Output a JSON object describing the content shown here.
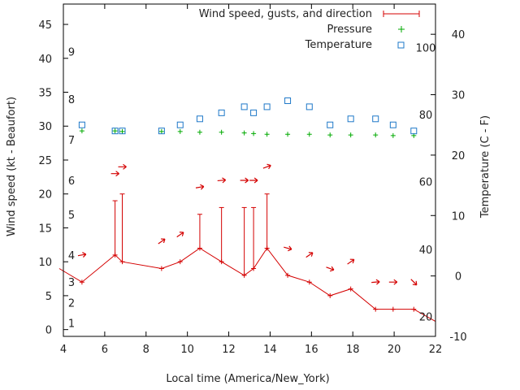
{
  "chart_data": {
    "type": "line",
    "xlabel": "Local time (America/New_York)",
    "ylabel_left": "Wind speed (kt - Beaufort)",
    "ylabel_right": "Temperature (C - F)",
    "xlim": [
      4,
      22
    ],
    "xticks": [
      4,
      6,
      8,
      10,
      12,
      14,
      16,
      18,
      20,
      22
    ],
    "ylim_left": [
      -1,
      48
    ],
    "yticks_left": [
      0,
      5,
      10,
      15,
      20,
      25,
      30,
      35,
      40,
      45
    ],
    "ylim_right_celsius": [
      -10,
      45
    ],
    "yticks_right_celsius": [
      -10,
      0,
      10,
      20,
      30,
      40
    ],
    "fahrenheit_labels": [
      {
        "label": "20",
        "celsius": -6.7
      },
      {
        "label": "40",
        "celsius": 4.4
      },
      {
        "label": "60",
        "celsius": 15.6
      },
      {
        "label": "80",
        "celsius": 26.7
      },
      {
        "label": "100",
        "celsius": 37.8
      }
    ],
    "beaufort_labels": [
      {
        "label": "1",
        "y": 1
      },
      {
        "label": "2",
        "y": 4
      },
      {
        "label": "3",
        "y": 7
      },
      {
        "label": "4",
        "y": 11
      },
      {
        "label": "5",
        "y": 17
      },
      {
        "label": "6",
        "y": 22
      },
      {
        "label": "7",
        "y": 28
      },
      {
        "label": "8",
        "y": 34
      },
      {
        "label": "9",
        "y": 41
      }
    ],
    "legend": {
      "position": "top-right",
      "entries": [
        "Wind speed, gusts, and direction",
        "Pressure",
        "Temperature"
      ]
    },
    "colors": {
      "wind": "#d40000",
      "pressure": "#00aa00",
      "temperature": "#1e78c8",
      "axis": "#000000"
    },
    "wind_speed": {
      "name": "Wind speed, gusts, and direction",
      "x": [
        3.8,
        4.9,
        6.5,
        6.85,
        8.75,
        9.65,
        10.6,
        11.65,
        12.75,
        13.2,
        13.85,
        14.85,
        15.9,
        16.9,
        17.9,
        19.1,
        19.95,
        20.95,
        22
      ],
      "y": [
        9,
        7,
        11,
        10,
        9,
        10,
        12,
        10,
        8,
        9,
        12,
        8,
        7,
        5,
        6,
        3,
        3,
        3,
        1.2
      ],
      "markers": [
        false,
        true,
        true,
        true,
        true,
        true,
        true,
        true,
        true,
        true,
        true,
        true,
        true,
        true,
        true,
        true,
        true,
        true,
        false
      ]
    },
    "gusts": [
      {
        "x": 6.5,
        "base": 11,
        "gust": 19
      },
      {
        "x": 6.85,
        "base": 10,
        "gust": 20
      },
      {
        "x": 10.6,
        "base": 12,
        "gust": 17
      },
      {
        "x": 11.65,
        "base": 10,
        "gust": 18
      },
      {
        "x": 12.75,
        "base": 8,
        "gust": 18
      },
      {
        "x": 13.2,
        "base": 9,
        "gust": 18
      },
      {
        "x": 13.85,
        "base": 12,
        "gust": 20
      }
    ],
    "direction_arrows": [
      {
        "x": 4.9,
        "y": 11.0,
        "angle": -10
      },
      {
        "x": 6.5,
        "y": 23.0,
        "angle": 0
      },
      {
        "x": 6.85,
        "y": 24.0,
        "angle": 0
      },
      {
        "x": 8.75,
        "y": 13.0,
        "angle": -35
      },
      {
        "x": 9.65,
        "y": 14.0,
        "angle": -35
      },
      {
        "x": 10.6,
        "y": 21.0,
        "angle": -10
      },
      {
        "x": 11.65,
        "y": 22.0,
        "angle": -5
      },
      {
        "x": 12.75,
        "y": 22.0,
        "angle": 0
      },
      {
        "x": 13.2,
        "y": 22.0,
        "angle": 0
      },
      {
        "x": 13.85,
        "y": 24.0,
        "angle": -20
      },
      {
        "x": 14.85,
        "y": 12.0,
        "angle": 15
      },
      {
        "x": 15.9,
        "y": 11.0,
        "angle": -35
      },
      {
        "x": 16.9,
        "y": 9.0,
        "angle": 20
      },
      {
        "x": 17.9,
        "y": 10.0,
        "angle": -35
      },
      {
        "x": 19.1,
        "y": 7.0,
        "angle": -5
      },
      {
        "x": 19.95,
        "y": 7.0,
        "angle": 0
      },
      {
        "x": 20.95,
        "y": 7.0,
        "angle": 45
      }
    ],
    "pressure": {
      "name": "Pressure",
      "x": [
        4.9,
        6.5,
        6.85,
        8.75,
        9.65,
        10.6,
        11.65,
        12.75,
        13.2,
        13.85,
        14.85,
        15.9,
        16.9,
        17.9,
        19.1,
        19.95,
        20.95
      ],
      "y": [
        29.3,
        29.3,
        29.2,
        29.2,
        29.2,
        29.1,
        29.1,
        29.0,
        28.9,
        28.8,
        28.8,
        28.8,
        28.7,
        28.7,
        28.7,
        28.6,
        28.6
      ]
    },
    "temperature": {
      "name": "Temperature",
      "x": [
        4.9,
        6.5,
        6.85,
        8.75,
        9.65,
        10.6,
        11.65,
        12.75,
        13.2,
        13.85,
        14.85,
        15.9,
        16.9,
        17.9,
        19.1,
        19.95,
        20.95
      ],
      "y_celsius": [
        25.0,
        24.0,
        24.0,
        24.0,
        25.0,
        26.0,
        27.0,
        28.0,
        27.0,
        28.0,
        29.0,
        28.0,
        25.0,
        26.0,
        26.0,
        25.0,
        24.0
      ]
    }
  }
}
